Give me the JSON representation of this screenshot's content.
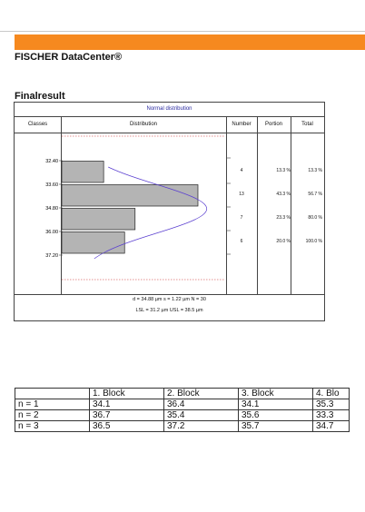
{
  "brand": "FISCHER DataCenter®",
  "section_title": "Finalresult",
  "panel": {
    "title": "Normal distribution",
    "headers": {
      "classes": "Classes",
      "distribution": "Distribution",
      "number": "Number",
      "portion": "Portion",
      "total": "Total"
    },
    "class_labels": [
      "32.40",
      "33.60",
      "34.80",
      "36.00",
      "37.20"
    ],
    "rows": [
      {
        "number": "4",
        "portion": "13.3 %",
        "total": "13.3 %",
        "count": 4
      },
      {
        "number": "13",
        "portion": "43.3 %",
        "total": "56.7 %",
        "count": 13
      },
      {
        "number": "7",
        "portion": "23.3 %",
        "total": "80.0 %",
        "count": 7
      },
      {
        "number": "6",
        "portion": "20.0 %",
        "total": "100.0 %",
        "count": 6
      }
    ],
    "stats_line1": "d = 34.88 µm        s = 1.22 µm        N = 30",
    "stats_line2": "LSL = 31.2 µm        USL = 38.5 µm"
  },
  "blocks_table": {
    "headers": [
      "",
      "1. Block",
      "2. Block",
      "3. Block",
      "4. Blo"
    ],
    "rows": [
      [
        "n = 1",
        "34.1",
        "36.4",
        "34.1",
        "35.3"
      ],
      [
        "n = 2",
        "36.7",
        "35.4",
        "35.6",
        "33.3"
      ],
      [
        "n = 3",
        "36.5",
        "37.2",
        "35.7",
        "34.7"
      ]
    ]
  },
  "colors": {
    "accent": "#f6891f",
    "curve": "#5a3fd0",
    "bars": "#b4b4b4",
    "spec_line": "#cc2222"
  }
}
